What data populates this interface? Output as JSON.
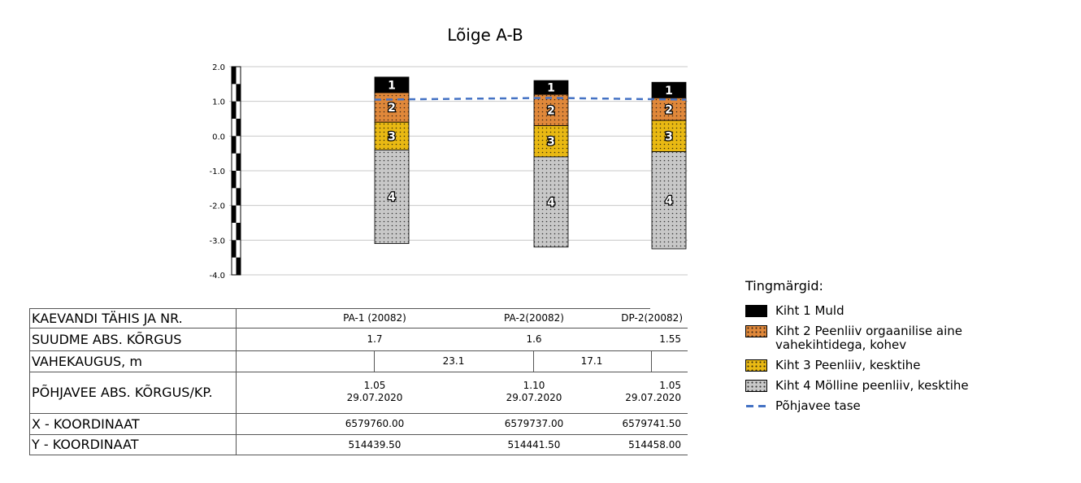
{
  "chart_data": {
    "type": "stacked-column-profile",
    "title": "Lõige A-B",
    "ylim": [
      -4.0,
      2.0
    ],
    "y_ticks": [
      "2.0",
      "1.0",
      "0.0",
      "-1.0",
      "-2.0",
      "-3.0",
      "-4.0"
    ],
    "grid": true,
    "legend_position": "right",
    "categories": [
      "PA-1 (20082)",
      "PA-2(20082)",
      "DP-2(20082)"
    ],
    "boreholes": [
      {
        "name": "PA-1 (20082)",
        "layers": [
          {
            "id": "1",
            "top": 1.7,
            "bottom": 1.25
          },
          {
            "id": "2",
            "top": 1.25,
            "bottom": 0.4
          },
          {
            "id": "3",
            "top": 0.4,
            "bottom": -0.4
          },
          {
            "id": "4",
            "top": -0.4,
            "bottom": -3.1
          }
        ]
      },
      {
        "name": "PA-2(20082)",
        "layers": [
          {
            "id": "1",
            "top": 1.6,
            "bottom": 1.2
          },
          {
            "id": "2",
            "top": 1.2,
            "bottom": 0.3
          },
          {
            "id": "3",
            "top": 0.3,
            "bottom": -0.6
          },
          {
            "id": "4",
            "top": -0.6,
            "bottom": -3.2
          }
        ]
      },
      {
        "name": "DP-2(20082)",
        "layers": [
          {
            "id": "1",
            "top": 1.55,
            "bottom": 1.1
          },
          {
            "id": "2",
            "top": 1.1,
            "bottom": 0.45
          },
          {
            "id": "3",
            "top": 0.45,
            "bottom": -0.45
          },
          {
            "id": "4",
            "top": -0.45,
            "bottom": -3.25
          }
        ]
      }
    ],
    "series": [
      {
        "name": "Kiht 1 Muld",
        "color": "#000000"
      },
      {
        "name": "Kiht 2 Peenliiv orgaanilise aine vahekihtidega, kohev",
        "color": "#e0883a"
      },
      {
        "name": "Kiht 3 Peenliiv, kesktihe",
        "color": "#e9b913"
      },
      {
        "name": "Kiht 4 Mölline peenliiv, kesktihe",
        "color": "#c8c8c8"
      }
    ],
    "groundwater": {
      "name": "Põhjavee tase",
      "color": "#4472c4",
      "values": [
        1.05,
        1.1,
        1.05
      ]
    }
  },
  "table": {
    "row_labels": [
      "KAEVANDI TÄHIS JA NR.",
      "SUUDME ABS. KÕRGUS",
      "VAHEKAUGUS, m",
      "PÕHJAVEE ABS. KÕRGUS/KP.",
      "X - KOORDINAAT",
      "Y - KOORDINAAT"
    ],
    "names": [
      "PA-1 (20082)",
      "PA-2(20082)",
      "DP-2(20082)"
    ],
    "elevations": [
      "1.7",
      "1.6",
      "1.55"
    ],
    "distances": [
      "23.1",
      "17.1"
    ],
    "gw_levels": [
      "1.05",
      "1.10",
      "1.05"
    ],
    "gw_dates": [
      "29.07.2020",
      "29.07.2020",
      "29.07.2020"
    ],
    "x_coords": [
      "6579760.00",
      "6579737.00",
      "6579741.50"
    ],
    "y_coords": [
      "514439.50",
      "514441.50",
      "514458.00"
    ]
  },
  "legend": {
    "title": "Tingmärgid:",
    "items": [
      "Kiht 1 Muld",
      "Kiht 2 Peenliiv orgaanilise aine vahekihtidega, kohev",
      "Kiht 3 Peenliiv, kesktihe",
      "Kiht 4 Mölline peenliiv, kesktihe",
      "Põhjavee tase"
    ]
  }
}
